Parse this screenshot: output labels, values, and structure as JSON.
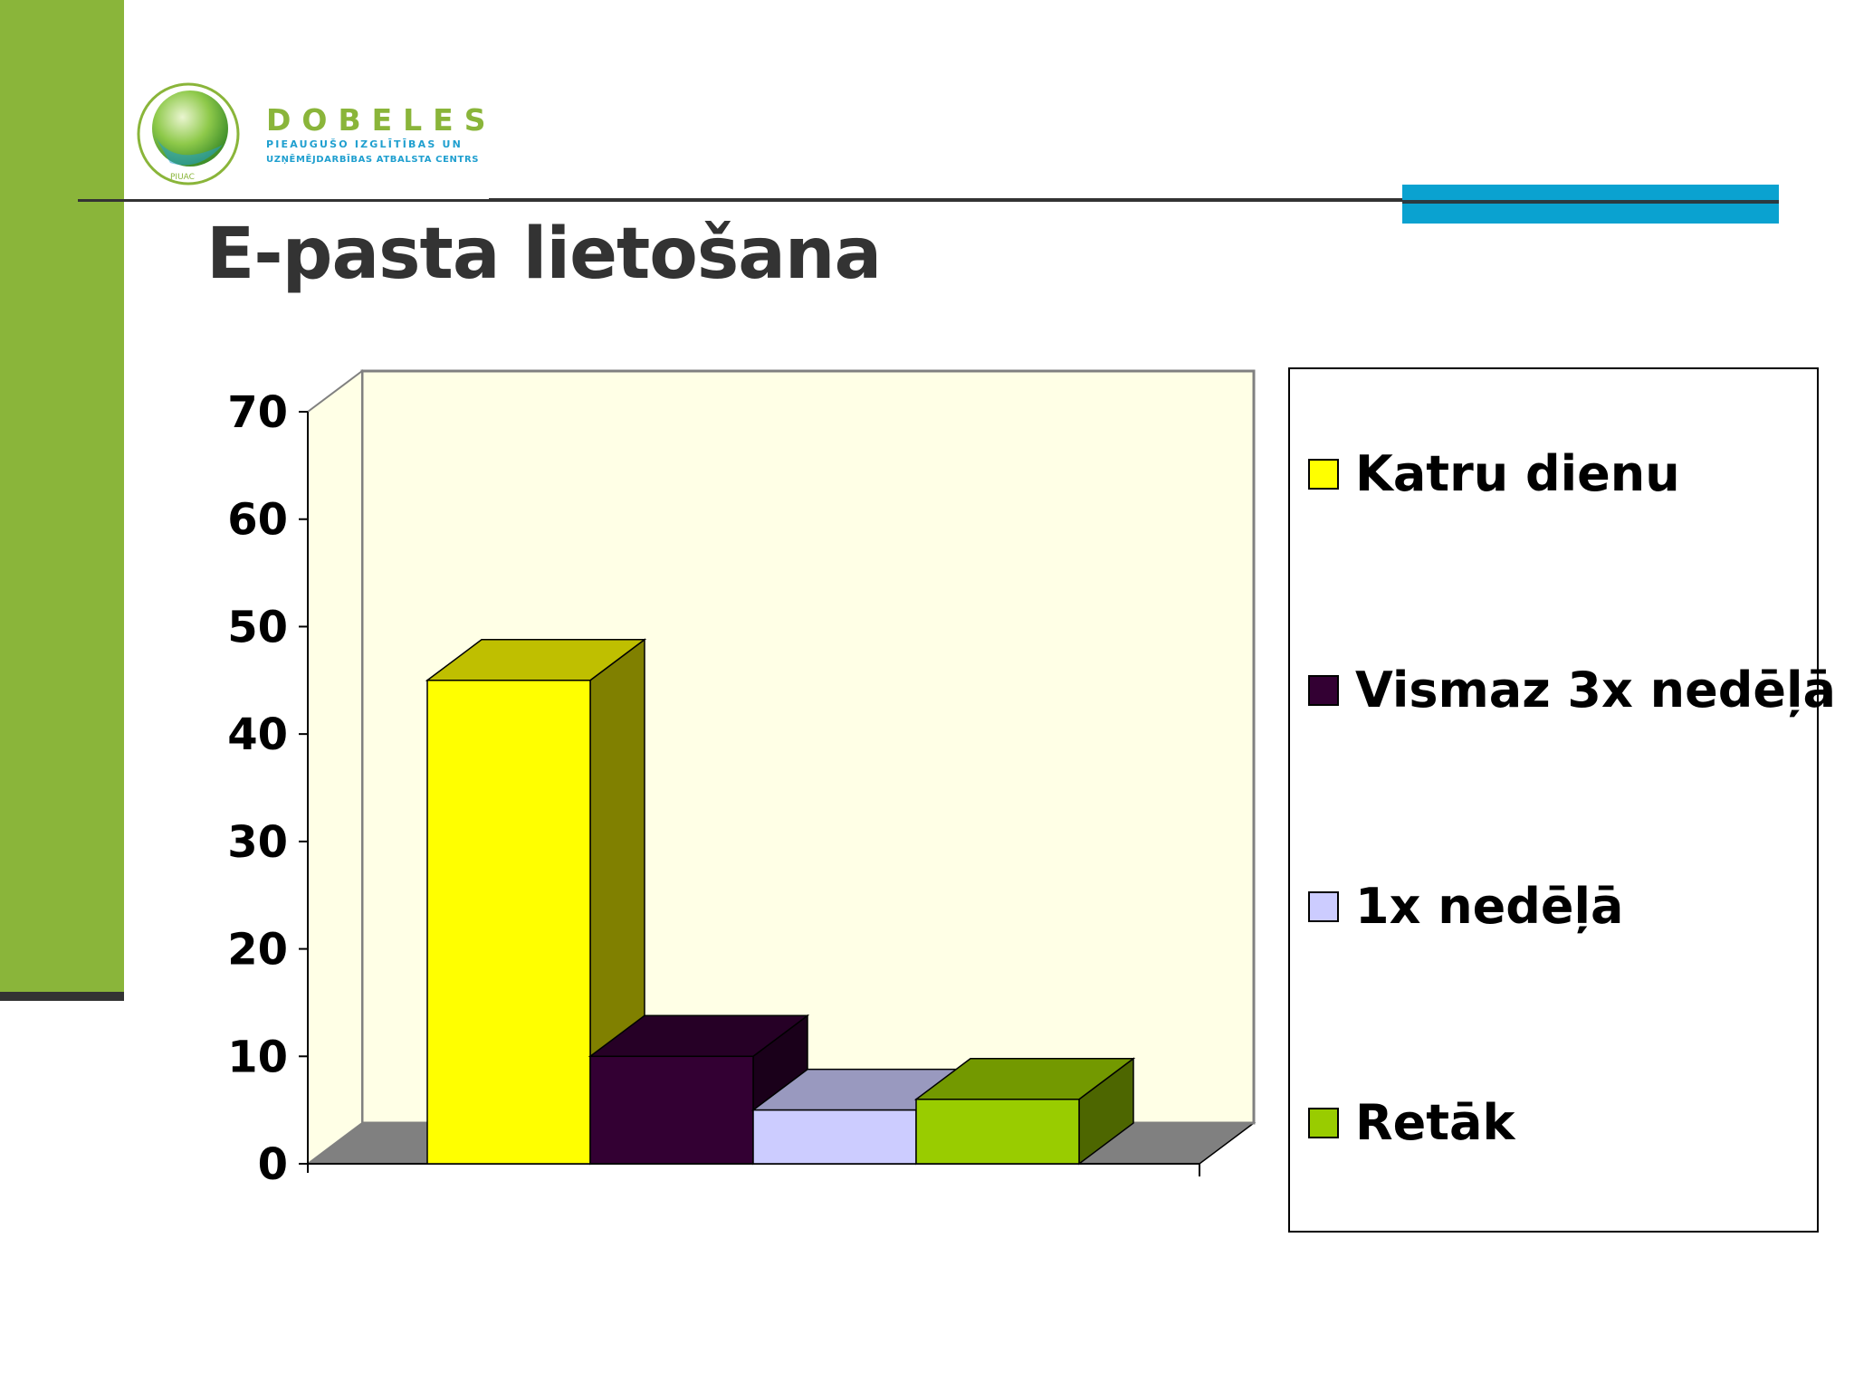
{
  "slide": {
    "title": "E-pasta lietošana"
  },
  "logo": {
    "name": "DOBELES",
    "subtitle_line1": "PIEAUGUŠO IZGLĪTĪBAS UN",
    "subtitle_line2": "UZŅĒMĒJDARBĪBAS ATBALSTA CENTRS",
    "badge": "PIUAC",
    "accent_color": "#8ab53a"
  },
  "chart_data": {
    "type": "bar",
    "style": "3d",
    "title": "",
    "xlabel": "",
    "ylabel": "",
    "ylim": [
      0,
      70
    ],
    "yticks": [
      0,
      10,
      20,
      30,
      40,
      50,
      60,
      70
    ],
    "grid": false,
    "legend_position": "right",
    "series": [
      {
        "name": "Katru dienu",
        "value": 45,
        "color": "#ffff00"
      },
      {
        "name": "Vismaz 3x nedēļā",
        "value": 10,
        "color": "#330033"
      },
      {
        "name": "1x nedēļā",
        "value": 5,
        "color": "#ccccff"
      },
      {
        "name": "Retāk",
        "value": 6,
        "color": "#99cc00"
      }
    ]
  }
}
